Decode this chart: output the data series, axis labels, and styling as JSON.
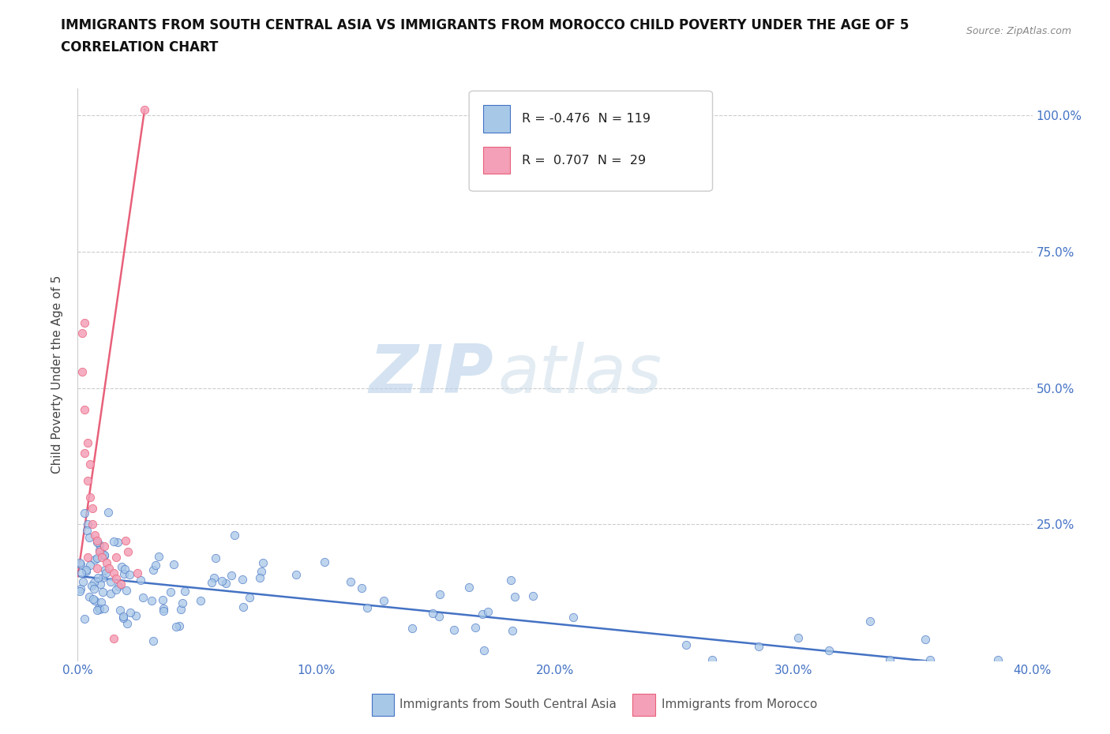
{
  "title_line1": "IMMIGRANTS FROM SOUTH CENTRAL ASIA VS IMMIGRANTS FROM MOROCCO CHILD POVERTY UNDER THE AGE OF 5",
  "title_line2": "CORRELATION CHART",
  "source_text": "Source: ZipAtlas.com",
  "ylabel": "Child Poverty Under the Age of 5",
  "xlim": [
    0.0,
    0.4
  ],
  "ylim": [
    0.0,
    1.05
  ],
  "xtick_labels": [
    "0.0%",
    "10.0%",
    "20.0%",
    "30.0%",
    "40.0%"
  ],
  "xtick_values": [
    0.0,
    0.1,
    0.2,
    0.3,
    0.4
  ],
  "ytick_labels": [
    "25.0%",
    "50.0%",
    "75.0%",
    "100.0%"
  ],
  "ytick_values": [
    0.25,
    0.5,
    0.75,
    1.0
  ],
  "color_blue": "#a8c8e8",
  "color_pink": "#f4a0b8",
  "line_blue": "#4472c4",
  "line_pink": "#e8607a",
  "legend_R1": "-0.476",
  "legend_N1": "119",
  "legend_R2": "0.707",
  "legend_N2": "29",
  "legend_label1": "Immigrants from South Central Asia",
  "legend_label2": "Immigrants from Morocco",
  "watermark_zip": "ZIP",
  "watermark_atlas": "atlas",
  "title_fontsize": 12,
  "axis_label_fontsize": 11,
  "tick_fontsize": 11,
  "blue_line_x0": 0.0,
  "blue_line_y0": 0.155,
  "blue_line_x1": 0.4,
  "blue_line_y1": -0.02,
  "pink_line_x0": 0.0,
  "pink_line_y0": 0.155,
  "pink_line_x1": 0.028,
  "pink_line_y1": 1.01
}
